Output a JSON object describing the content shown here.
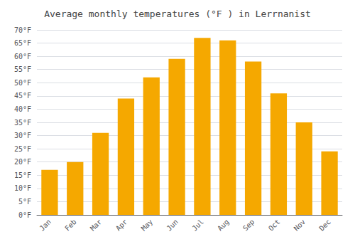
{
  "chart_data": {
    "type": "bar",
    "title": "Average monthly temperatures (°F ) in Lerrnanist",
    "categories": [
      "Jan",
      "Feb",
      "Mar",
      "Apr",
      "May",
      "Jun",
      "Jul",
      "Aug",
      "Sep",
      "Oct",
      "Nov",
      "Dec"
    ],
    "values": [
      17,
      20,
      31,
      44,
      52,
      59,
      67,
      66,
      58,
      46,
      35,
      24
    ],
    "color": "#F5A800",
    "ylim": [
      0,
      70
    ],
    "yticks": [
      {
        "value": 0,
        "label": "0°F"
      },
      {
        "value": 5,
        "label": "5°F"
      },
      {
        "value": 10,
        "label": "10°F"
      },
      {
        "value": 15,
        "label": "15°F"
      },
      {
        "value": 20,
        "label": "20°F"
      },
      {
        "value": 25,
        "label": "25°F"
      },
      {
        "value": 30,
        "label": "30°F"
      },
      {
        "value": 35,
        "label": "35°F"
      },
      {
        "value": 40,
        "label": "40°F"
      },
      {
        "value": 45,
        "label": "45°F"
      },
      {
        "value": 50,
        "label": "50°F"
      },
      {
        "value": 55,
        "label": "55°F"
      },
      {
        "value": 60,
        "label": "60°F"
      },
      {
        "value": 65,
        "label": "65°F"
      },
      {
        "value": 70,
        "label": "70°F"
      }
    ],
    "grid": true
  }
}
